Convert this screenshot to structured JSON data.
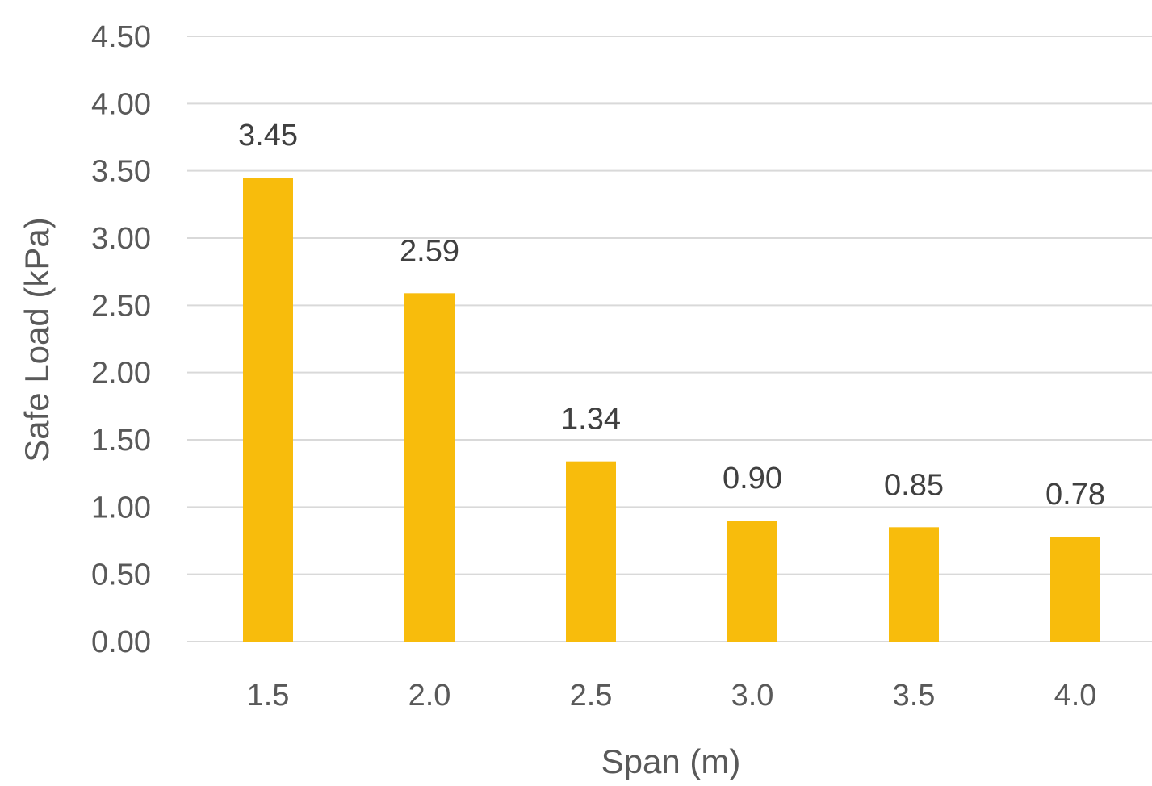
{
  "chart_data": {
    "type": "bar",
    "title": "",
    "xlabel": "Span (m)",
    "ylabel": "Safe Load (kPa)",
    "categories": [
      "1.5",
      "2.0",
      "2.5",
      "3.0",
      "3.5",
      "4.0"
    ],
    "values": [
      3.45,
      2.59,
      1.34,
      0.9,
      0.85,
      0.78
    ],
    "data_labels": [
      "3.45",
      "2.59",
      "1.34",
      "0.90",
      "0.85",
      "0.78"
    ],
    "yticks": [
      "0.00",
      "0.50",
      "1.00",
      "1.50",
      "2.00",
      "2.50",
      "3.00",
      "3.50",
      "4.00",
      "4.50"
    ],
    "ylim": [
      0,
      4.5
    ],
    "grid": true,
    "legend": "none",
    "colors": {
      "bar": "#F8BC0C",
      "grid": "#D9D9D9",
      "tick_text": "#595959",
      "label_text": "#404040"
    }
  }
}
